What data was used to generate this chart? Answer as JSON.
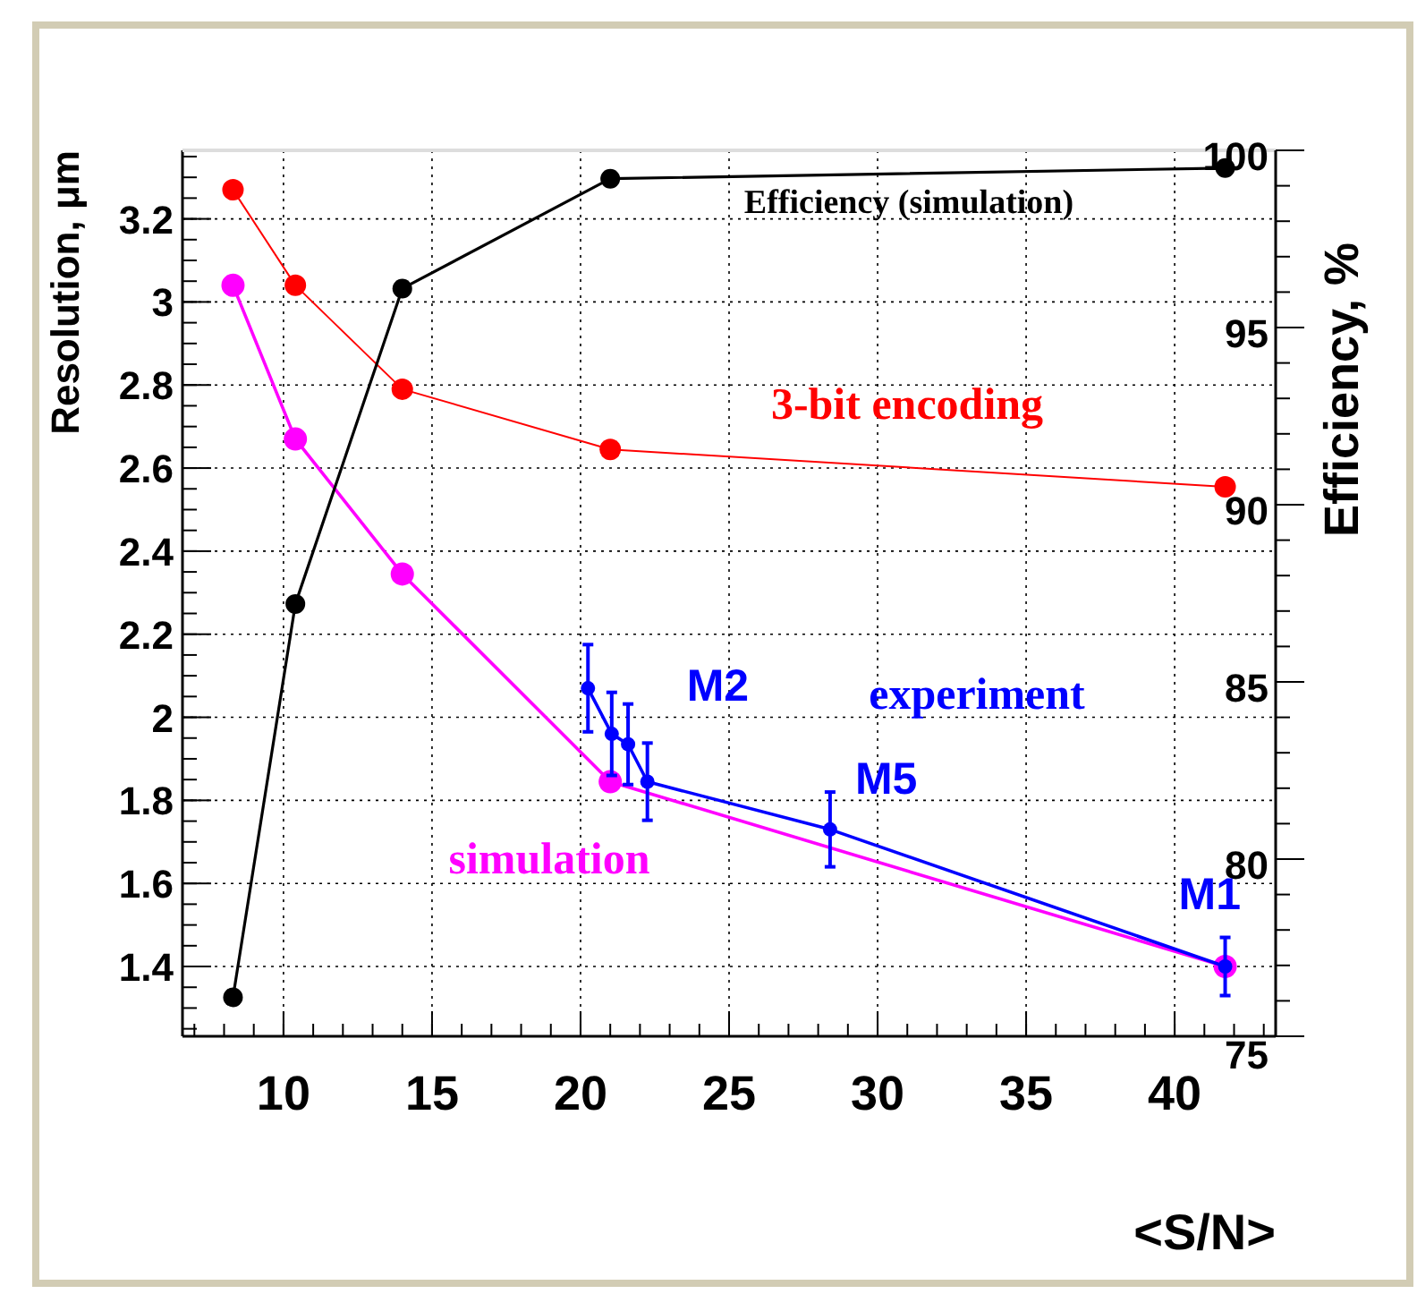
{
  "chart_data": {
    "type": "line",
    "xlabel": "<S/N>",
    "ylabel": "Resolution, μm",
    "y2label": "Efficiency, %",
    "xlim": [
      6.6,
      43.4
    ],
    "ylim": [
      1.232,
      3.365
    ],
    "y2lim": [
      75,
      100
    ],
    "xticks": [
      10,
      15,
      20,
      25,
      30,
      35,
      40
    ],
    "yticks": [
      1.4,
      1.6,
      1.8,
      2,
      2.2,
      2.4,
      2.6,
      2.8,
      3,
      3.2
    ],
    "y2ticks": [
      75,
      80,
      85,
      90,
      95,
      100
    ],
    "grid": true,
    "marker": "circle",
    "series": [
      {
        "name": "3-bit encoding",
        "color": "#ff0000",
        "x": [
          8.3,
          10.4,
          14.0,
          21.0,
          41.7
        ],
        "values": [
          3.27,
          3.04,
          2.79,
          2.645,
          2.555
        ]
      },
      {
        "name": "simulation",
        "color": "#ff00ff",
        "x": [
          8.3,
          10.4,
          14.0,
          21.0,
          41.7
        ],
        "values": [
          3.04,
          2.67,
          2.345,
          1.845,
          1.4
        ]
      },
      {
        "name": "experiment",
        "color": "#0000ff",
        "x": [
          20.25,
          21.05,
          21.6,
          22.25,
          28.4,
          41.7
        ],
        "values": [
          2.07,
          1.96,
          1.935,
          1.845,
          1.73,
          1.4
        ],
        "errors": [
          0.105,
          0.1,
          0.097,
          0.093,
          0.09,
          0.07
        ]
      },
      {
        "name": "Efficiency (simulation)",
        "color": "#000000",
        "axis": "y2",
        "x": [
          8.3,
          10.4,
          14.0,
          21.0,
          41.7
        ],
        "values": [
          76.1,
          87.2,
          96.1,
          99.2,
          99.5
        ]
      }
    ],
    "annotations": [
      {
        "text": "M2",
        "x": 22.25,
        "y": 1.845
      },
      {
        "text": "M5",
        "x": 28.4,
        "y": 1.73
      },
      {
        "text": "M1",
        "x": 41.7,
        "y": 1.4
      }
    ]
  }
}
